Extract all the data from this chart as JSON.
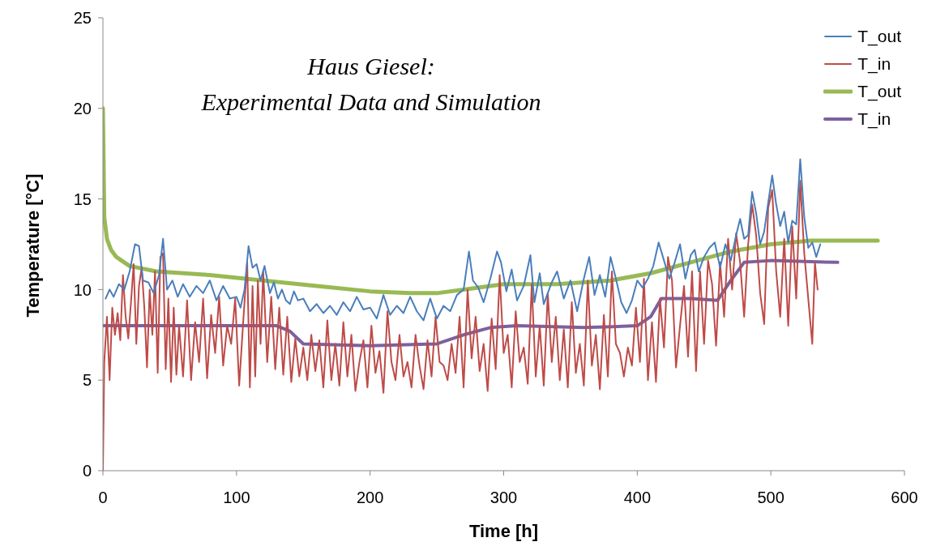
{
  "chart_data": {
    "type": "line",
    "title": "Haus Giesel:\nExperimental Data and Simulation",
    "xlabel": "Time [h]",
    "ylabel": "Temperature [°C]",
    "xlim": [
      0,
      600
    ],
    "xticks": [
      0,
      100,
      200,
      300,
      400,
      500,
      600
    ],
    "ylim": [
      0,
      25
    ],
    "yticks": [
      0,
      5,
      10,
      15,
      20,
      25
    ],
    "legend": "top right",
    "series": [
      {
        "name": "T_out",
        "color": "#4a7ebb",
        "x": [
          2,
          5,
          8,
          12,
          16,
          20,
          24,
          27,
          30,
          34,
          38,
          42,
          45,
          48,
          52,
          56,
          60,
          65,
          70,
          75,
          80,
          85,
          90,
          95,
          100,
          103,
          106,
          109,
          112,
          115,
          118,
          121,
          125,
          128,
          131,
          134,
          137,
          140,
          143,
          146,
          150,
          155,
          160,
          165,
          170,
          175,
          180,
          185,
          190,
          195,
          200,
          205,
          210,
          215,
          220,
          225,
          230,
          235,
          240,
          245,
          250,
          255,
          260,
          265,
          270,
          274,
          277,
          281,
          285,
          290,
          295,
          298,
          302,
          306,
          310,
          315,
          320,
          323,
          327,
          330,
          336,
          340,
          345,
          350,
          355,
          360,
          364,
          368,
          372,
          376,
          380,
          384,
          388,
          392,
          396,
          400,
          404,
          408,
          412,
          416,
          420,
          424,
          428,
          432,
          436,
          440,
          443,
          446,
          450,
          454,
          458,
          462,
          466,
          470,
          474,
          477,
          480,
          483,
          486,
          489,
          492,
          495,
          498,
          501,
          504,
          507,
          510,
          513,
          516,
          519,
          522,
          525,
          528,
          531,
          534,
          537
        ],
        "values": [
          9.5,
          10.0,
          9.6,
          10.3,
          10.0,
          11.0,
          12.5,
          12.4,
          10.5,
          10.4,
          9.8,
          10.8,
          12.8,
          10.0,
          10.5,
          9.6,
          10.3,
          9.6,
          10.2,
          9.8,
          10.5,
          9.4,
          10.2,
          9.5,
          9.6,
          9.0,
          10.0,
          12.4,
          11.2,
          11.4,
          10.5,
          11.3,
          9.8,
          10.4,
          9.5,
          10.0,
          9.4,
          9.2,
          9.9,
          9.4,
          9.5,
          8.8,
          9.2,
          8.7,
          9.1,
          8.6,
          9.3,
          8.8,
          9.6,
          8.9,
          9.0,
          8.4,
          9.7,
          8.6,
          9.1,
          8.7,
          9.6,
          8.8,
          8.3,
          9.5,
          8.4,
          9.1,
          8.8,
          9.7,
          10.0,
          12.1,
          10.5,
          10.1,
          9.3,
          10.6,
          12.1,
          11.5,
          9.9,
          11.1,
          9.4,
          10.2,
          11.9,
          9.3,
          10.9,
          9.2,
          10.4,
          11.0,
          9.5,
          10.5,
          8.8,
          10.6,
          11.8,
          9.7,
          10.8,
          9.6,
          11.8,
          10.6,
          9.3,
          8.7,
          9.4,
          10.5,
          10.1,
          10.6,
          11.3,
          12.6,
          11.6,
          10.6,
          11.5,
          12.5,
          10.6,
          11.9,
          12.2,
          11.0,
          11.8,
          12.3,
          12.6,
          11.2,
          12.5,
          11.6,
          13.0,
          13.9,
          12.8,
          13.0,
          15.4,
          14.2,
          12.5,
          13.2,
          14.8,
          16.3,
          14.7,
          13.5,
          14.3,
          12.6,
          13.8,
          13.6,
          17.2,
          14.0,
          12.3,
          12.6,
          11.8,
          12.5
        ]
      },
      {
        "name": "T_in",
        "color": "#be4b48",
        "x": [
          0,
          1,
          3,
          5,
          7,
          9,
          11,
          13,
          15,
          17,
          19,
          21,
          23,
          25,
          27,
          29,
          31,
          33,
          35,
          37,
          39,
          41,
          43,
          45,
          47,
          49,
          51,
          53,
          55,
          57,
          60,
          63,
          66,
          69,
          72,
          75,
          78,
          81,
          84,
          87,
          90,
          93,
          96,
          99,
          102,
          105,
          108,
          110,
          112,
          114,
          116,
          118,
          120,
          123,
          126,
          129,
          132,
          135,
          138,
          141,
          144,
          147,
          150,
          153,
          156,
          159,
          162,
          165,
          168,
          171,
          174,
          177,
          180,
          183,
          186,
          189,
          192,
          195,
          198,
          201,
          204,
          207,
          210,
          213,
          216,
          219,
          222,
          225,
          228,
          231,
          234,
          237,
          240,
          243,
          246,
          249,
          252,
          255,
          258,
          261,
          264,
          267,
          270,
          273,
          276,
          279,
          282,
          285,
          288,
          291,
          294,
          297,
          300,
          303,
          306,
          309,
          312,
          315,
          318,
          321,
          324,
          327,
          330,
          333,
          336,
          339,
          342,
          345,
          348,
          351,
          354,
          357,
          360,
          363,
          366,
          369,
          372,
          375,
          378,
          381,
          384,
          387,
          390,
          393,
          396,
          399,
          402,
          405,
          408,
          411,
          414,
          417,
          420,
          423,
          426,
          429,
          432,
          435,
          438,
          441,
          444,
          447,
          450,
          453,
          456,
          459,
          462,
          465,
          468,
          471,
          474,
          477,
          480,
          483,
          486,
          489,
          492,
          495,
          498,
          501,
          504,
          507,
          510,
          513,
          516,
          519,
          522,
          525,
          528,
          531,
          533,
          535
        ],
        "values": [
          0,
          6.0,
          8.5,
          5.0,
          9.0,
          7.5,
          8.7,
          7.2,
          10.8,
          8.5,
          7.3,
          9.3,
          11.4,
          7.0,
          10.2,
          11.2,
          9.0,
          5.7,
          10.0,
          7.5,
          11.0,
          5.4,
          11.8,
          12.0,
          5.6,
          9.5,
          4.9,
          9.0,
          5.3,
          8.0,
          5.2,
          9.4,
          5.0,
          8.2,
          6.0,
          9.5,
          5.1,
          8.6,
          6.5,
          9.6,
          5.8,
          8.0,
          7.0,
          9.5,
          4.7,
          8.2,
          11.5,
          4.6,
          10.2,
          5.2,
          10.5,
          7.0,
          11.0,
          6.0,
          9.6,
          5.6,
          9.0,
          5.3,
          8.5,
          4.9,
          7.3,
          5.2,
          6.8,
          5.0,
          7.5,
          5.5,
          7.2,
          4.6,
          8.3,
          5.0,
          7.0,
          4.7,
          8.2,
          5.2,
          7.5,
          4.4,
          6.0,
          7.2,
          4.6,
          8.0,
          5.4,
          6.6,
          4.3,
          8.8,
          6.0,
          5.0,
          7.5,
          5.2,
          6.0,
          4.6,
          7.5,
          5.8,
          4.5,
          7.2,
          5.2,
          8.5,
          6.0,
          5.8,
          5.0,
          7.0,
          5.4,
          8.5,
          4.6,
          10.0,
          6.2,
          8.5,
          5.5,
          7.0,
          4.4,
          8.4,
          5.6,
          10.8,
          6.5,
          7.5,
          4.6,
          8.8,
          6.0,
          6.8,
          4.8,
          10.3,
          5.2,
          8.0,
          4.7,
          9.8,
          6.0,
          8.5,
          5.0,
          7.8,
          4.6,
          9.3,
          5.4,
          7.0,
          4.7,
          10.5,
          5.8,
          7.5,
          4.5,
          8.6,
          5.2,
          11.0,
          7.0,
          6.5,
          5.2,
          6.8,
          5.8,
          9.0,
          6.0,
          10.6,
          5.0,
          8.2,
          4.9,
          9.5,
          6.8,
          11.8,
          10.5,
          5.7,
          8.0,
          10.2,
          6.3,
          11.0,
          5.5,
          11.0,
          7.0,
          11.6,
          10.3,
          6.9,
          11.5,
          8.5,
          12.8,
          10.0,
          13.1,
          11.5,
          8.5,
          12.5,
          14.7,
          13.0,
          9.8,
          8.1,
          14.5,
          15.5,
          11.0,
          8.5,
          12.8,
          8.0,
          13.5,
          9.5,
          16.0,
          12.0,
          9.5,
          7.0,
          11.5,
          10.0
        ]
      },
      {
        "name": "T_out",
        "color": "#98b954",
        "x": [
          0,
          1,
          3,
          6,
          10,
          20,
          40,
          80,
          120,
          160,
          200,
          230,
          250,
          270,
          300,
          340,
          380,
          410,
          440,
          470,
          500,
          530,
          560,
          580
        ],
        "values": [
          20,
          14,
          12.8,
          12.2,
          11.8,
          11.3,
          11.0,
          10.8,
          10.5,
          10.2,
          9.9,
          9.8,
          9.8,
          10.0,
          10.3,
          10.3,
          10.5,
          10.9,
          11.5,
          12.1,
          12.5,
          12.7,
          12.7,
          12.7
        ]
      },
      {
        "name": "T_in",
        "color": "#7d60a0",
        "x": [
          0,
          130,
          140,
          150,
          200,
          250,
          270,
          290,
          310,
          360,
          400,
          410,
          418,
          440,
          460,
          470,
          480,
          500,
          550
        ],
        "values": [
          8.0,
          8.0,
          7.7,
          7.0,
          6.9,
          7.0,
          7.5,
          7.9,
          8.0,
          7.9,
          8.0,
          8.5,
          9.5,
          9.5,
          9.4,
          10.5,
          11.5,
          11.6,
          11.5
        ]
      }
    ]
  }
}
